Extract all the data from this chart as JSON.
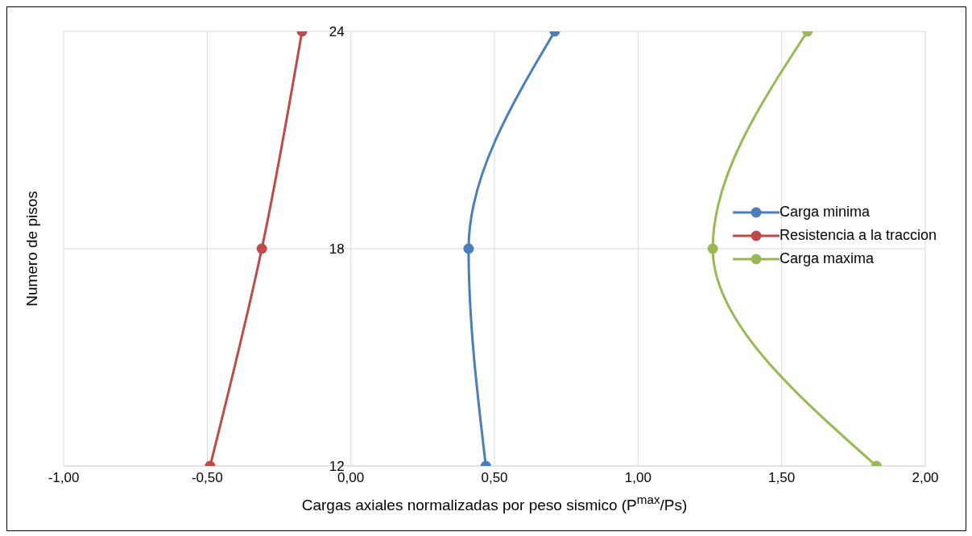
{
  "chart_data": {
    "type": "line",
    "xlabel": "Cargas axiales normalizadas por peso sismico (P$^{max}$/Ps)",
    "ylabel": "Numero de pisos",
    "series": [
      {
        "name": "Carga minima",
        "color": "#4a7ebb",
        "x": [
          0.47,
          0.41,
          0.71
        ],
        "values": [
          12,
          18,
          24
        ]
      },
      {
        "name": "Resistencia a la traccion",
        "color": "#be4b48",
        "x": [
          -0.49,
          -0.31,
          -0.17
        ],
        "values": [
          12,
          18,
          24
        ]
      },
      {
        "name": "Carga maxima",
        "color": "#98b954",
        "x": [
          1.83,
          1.26,
          1.59
        ],
        "values": [
          12,
          18,
          24
        ]
      }
    ],
    "xlim": [
      -1,
      2
    ],
    "xticks": [
      {
        "value": -1,
        "label": "-1,00"
      },
      {
        "value": -0.5,
        "label": "-0,50"
      },
      {
        "value": 0,
        "label": "0,00"
      },
      {
        "value": 0.5,
        "label": "0,50"
      },
      {
        "value": 1,
        "label": "1,00"
      },
      {
        "value": 1.5,
        "label": "1,50"
      },
      {
        "value": 2,
        "label": "2,00"
      }
    ],
    "ylim": [
      12,
      24
    ],
    "yticks": [
      12,
      18,
      24
    ],
    "grid": true,
    "legend": "right",
    "marker": "circle",
    "line_style": "solid"
  }
}
